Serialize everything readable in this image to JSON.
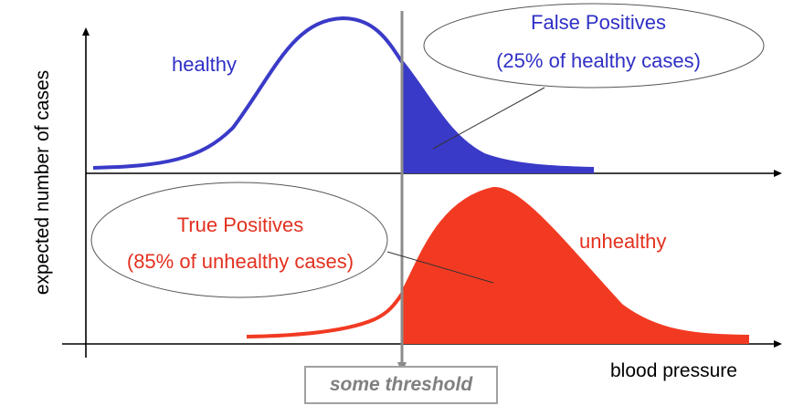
{
  "axes": {
    "y_label": "expected number of cases",
    "x_label": "blood pressure"
  },
  "curves": {
    "healthy_label": "healthy",
    "unhealthy_label": "unhealthy"
  },
  "callouts": {
    "false_positives": {
      "line1": "False Positives",
      "line2": "(25% of healthy cases)"
    },
    "true_positives": {
      "line1": "True Positives",
      "line2": "(85% of unhealthy cases)"
    }
  },
  "threshold_label": "some threshold",
  "colors": {
    "healthy": "#3a3ac8",
    "unhealthy": "#f23a22",
    "threshold": "#8c8c8c",
    "axis": "#000000"
  }
}
